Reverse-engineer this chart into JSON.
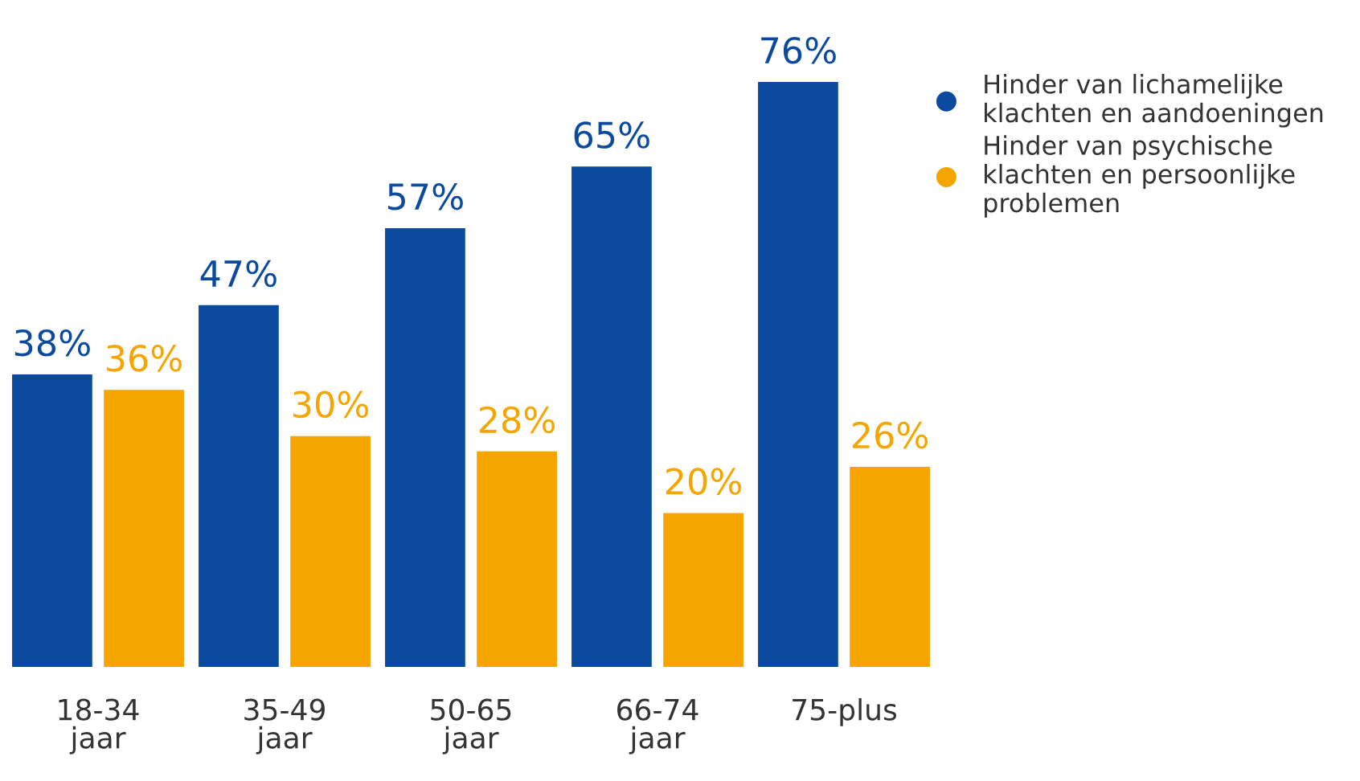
{
  "chart_data": {
    "type": "bar",
    "categories": [
      "18-34\njaar",
      "35-49\njaar",
      "50-65\njaar",
      "66-74\njaar",
      "75-plus"
    ],
    "series": [
      {
        "name": "Hinder van lichamelijke\nklachten en aandoeningen",
        "color": "#0b4a9e",
        "values": [
          38,
          47,
          57,
          65,
          76
        ],
        "value_labels": [
          "38%",
          "47%",
          "57%",
          "65%",
          "76%"
        ]
      },
      {
        "name": "Hinder van psychische\nklachten en persoonlijke\nproblemen",
        "color": "#f4a500",
        "values": [
          36,
          30,
          28,
          20,
          26
        ],
        "value_labels": [
          "36%",
          "30%",
          "28%",
          "20%",
          "26%"
        ]
      }
    ],
    "legend": "top right",
    "marker": "circle",
    "grid": false
  }
}
